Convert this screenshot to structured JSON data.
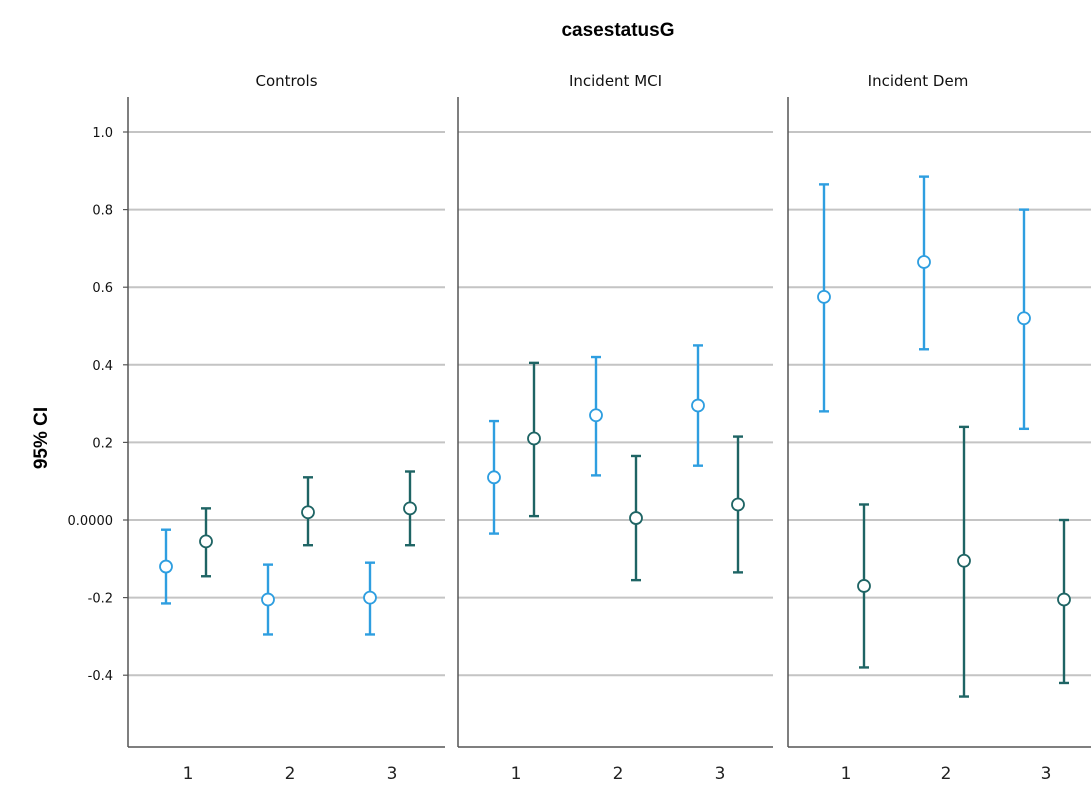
{
  "chart_data": {
    "type": "error-bar",
    "title": "casestatusG",
    "ylabel": "95% CI",
    "ylim": [
      -0.58,
      1.08
    ],
    "yticks": [
      {
        "value": 1.0,
        "label": "1.0"
      },
      {
        "value": 0.8,
        "label": "0.8"
      },
      {
        "value": 0.6,
        "label": "0.6"
      },
      {
        "value": 0.4,
        "label": "0.4"
      },
      {
        "value": 0.2,
        "label": "0.2"
      },
      {
        "value": 0.0,
        "label": "0.0000"
      },
      {
        "value": -0.2,
        "label": "-0.2"
      },
      {
        "value": -0.4,
        "label": "-0.4"
      }
    ],
    "grid": true,
    "categories": [
      "1",
      "2",
      "3"
    ],
    "series": [
      {
        "color": "#2e9ee0"
      },
      {
        "color": "#1e6464"
      }
    ],
    "panels": [
      {
        "name": "Controls",
        "points": [
          {
            "category": "1",
            "series": 0,
            "mean": -0.12,
            "lower": -0.215,
            "upper": -0.025
          },
          {
            "category": "1",
            "series": 1,
            "mean": -0.055,
            "lower": -0.145,
            "upper": 0.03
          },
          {
            "category": "2",
            "series": 0,
            "mean": -0.205,
            "lower": -0.295,
            "upper": -0.115
          },
          {
            "category": "2",
            "series": 1,
            "mean": 0.02,
            "lower": -0.065,
            "upper": 0.11
          },
          {
            "category": "3",
            "series": 0,
            "mean": -0.2,
            "lower": -0.295,
            "upper": -0.11
          },
          {
            "category": "3",
            "series": 1,
            "mean": 0.03,
            "lower": -0.065,
            "upper": 0.125
          }
        ]
      },
      {
        "name": "Incident MCI",
        "points": [
          {
            "category": "1",
            "series": 0,
            "mean": 0.11,
            "lower": -0.035,
            "upper": 0.255
          },
          {
            "category": "1",
            "series": 1,
            "mean": 0.21,
            "lower": 0.01,
            "upper": 0.405
          },
          {
            "category": "2",
            "series": 0,
            "mean": 0.27,
            "lower": 0.115,
            "upper": 0.42
          },
          {
            "category": "2",
            "series": 1,
            "mean": 0.005,
            "lower": -0.155,
            "upper": 0.165
          },
          {
            "category": "3",
            "series": 0,
            "mean": 0.295,
            "lower": 0.14,
            "upper": 0.45
          },
          {
            "category": "3",
            "series": 1,
            "mean": 0.04,
            "lower": -0.135,
            "upper": 0.215
          }
        ]
      },
      {
        "name": "Incident Dem",
        "points": [
          {
            "category": "1",
            "series": 0,
            "mean": 0.575,
            "lower": 0.28,
            "upper": 0.865
          },
          {
            "category": "1",
            "series": 1,
            "mean": -0.17,
            "lower": -0.38,
            "upper": 0.04
          },
          {
            "category": "2",
            "series": 0,
            "mean": 0.665,
            "lower": 0.44,
            "upper": 0.885
          },
          {
            "category": "2",
            "series": 1,
            "mean": -0.105,
            "lower": -0.455,
            "upper": 0.24
          },
          {
            "category": "3",
            "series": 0,
            "mean": 0.52,
            "lower": 0.235,
            "upper": 0.8
          },
          {
            "category": "3",
            "series": 1,
            "mean": -0.205,
            "lower": -0.42,
            "upper": 0.0
          }
        ]
      }
    ]
  }
}
